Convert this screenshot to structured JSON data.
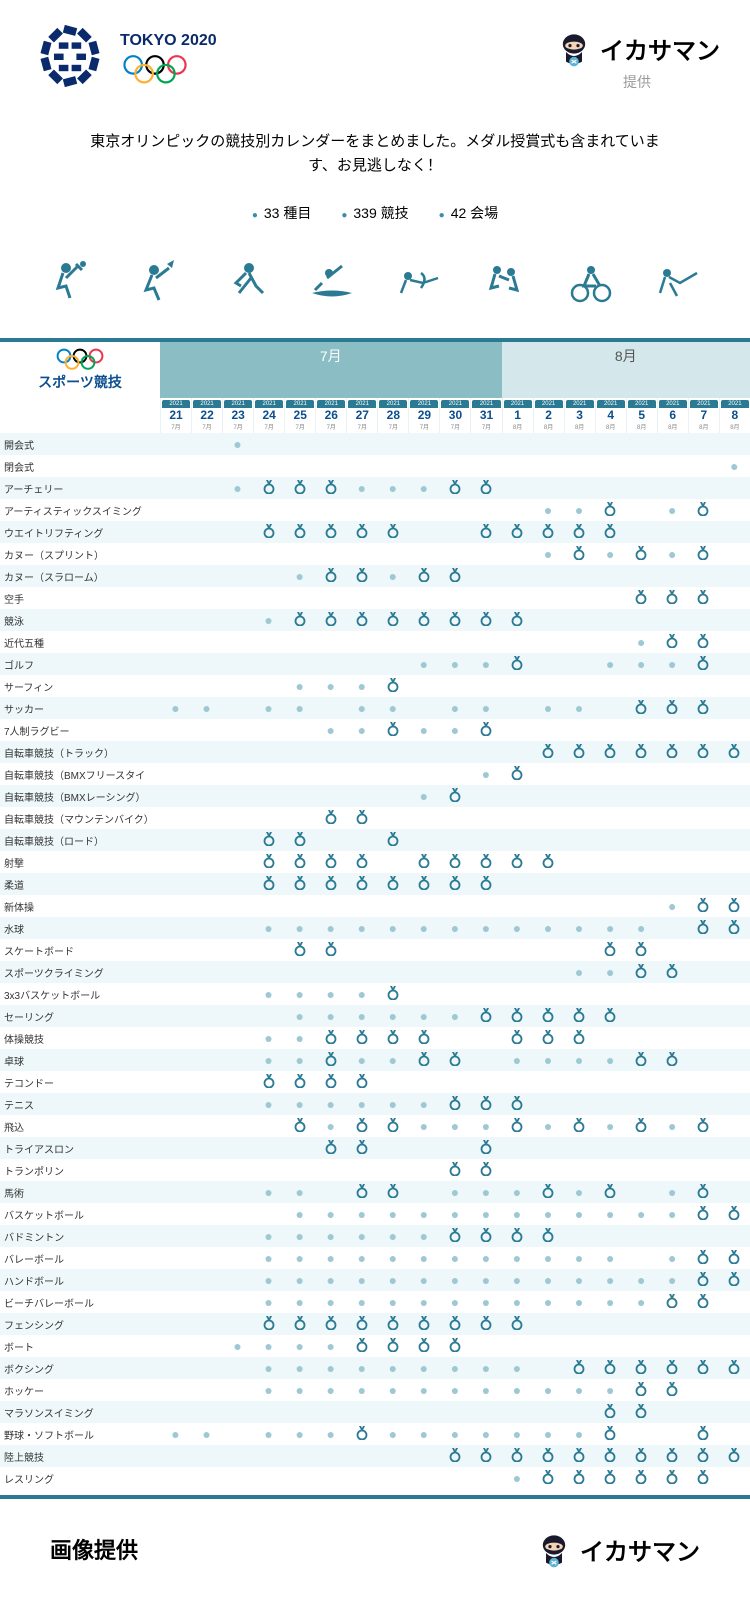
{
  "header": {
    "tokyo_text": "TOKYO 2020",
    "ikasaman": "イカサマン",
    "teikyo": "提供"
  },
  "intro": "東京オリンピックの競技別カレンダーをまとめました。メダル授賞式も含まれています、お見逃しなく！",
  "stats": [
    {
      "value": "33 種目"
    },
    {
      "value": "339 競技"
    },
    {
      "value": "42 会場"
    }
  ],
  "colors": {
    "brand": "#2b7a94",
    "navy": "#0b2a6b",
    "month_bg": "#8abdc4",
    "month_aug_bg": "#d4e8ec",
    "row_alt": "#eef7f9",
    "dot": "#9ec9d4"
  },
  "months": {
    "jul": "7月",
    "aug": "8月"
  },
  "sport_title": "スポーツ競技",
  "year": "2021",
  "dates": [
    {
      "d": "21",
      "m": "7月"
    },
    {
      "d": "22",
      "m": "7月"
    },
    {
      "d": "23",
      "m": "7月"
    },
    {
      "d": "24",
      "m": "7月"
    },
    {
      "d": "25",
      "m": "7月"
    },
    {
      "d": "26",
      "m": "7月"
    },
    {
      "d": "27",
      "m": "7月"
    },
    {
      "d": "28",
      "m": "7月"
    },
    {
      "d": "29",
      "m": "7月"
    },
    {
      "d": "30",
      "m": "7月"
    },
    {
      "d": "31",
      "m": "7月"
    },
    {
      "d": "1",
      "m": "8月"
    },
    {
      "d": "2",
      "m": "8月"
    },
    {
      "d": "3",
      "m": "8月"
    },
    {
      "d": "4",
      "m": "8月"
    },
    {
      "d": "5",
      "m": "8月"
    },
    {
      "d": "6",
      "m": "8月"
    },
    {
      "d": "7",
      "m": "8月"
    },
    {
      "d": "8",
      "m": "8月"
    }
  ],
  "legend": {
    "dot": "●",
    "medal": "ꝏ"
  },
  "sports": [
    {
      "name": "開会式",
      "cells": [
        "",
        "",
        "d",
        "",
        "",
        "",
        "",
        "",
        "",
        "",
        "",
        "",
        "",
        "",
        "",
        "",
        "",
        "",
        ""
      ]
    },
    {
      "name": "閉会式",
      "cells": [
        "",
        "",
        "",
        "",
        "",
        "",
        "",
        "",
        "",
        "",
        "",
        "",
        "",
        "",
        "",
        "",
        "",
        "",
        "d"
      ]
    },
    {
      "name": "アーチェリー",
      "cells": [
        "",
        "",
        "d",
        "m",
        "m",
        "m",
        "d",
        "d",
        "d",
        "m",
        "m",
        "",
        "",
        "",
        "",
        "",
        "",
        "",
        ""
      ]
    },
    {
      "name": "アーティスティックスイミング",
      "cells": [
        "",
        "",
        "",
        "",
        "",
        "",
        "",
        "",
        "",
        "",
        "",
        "",
        "d",
        "d",
        "m",
        "",
        "d",
        "m",
        ""
      ]
    },
    {
      "name": "ウエイトリフティング",
      "cells": [
        "",
        "",
        "",
        "m",
        "m",
        "m",
        "m",
        "m",
        "",
        "",
        "m",
        "m",
        "m",
        "m",
        "m",
        "",
        "",
        "",
        ""
      ]
    },
    {
      "name": "カヌー（スプリント）",
      "cells": [
        "",
        "",
        "",
        "",
        "",
        "",
        "",
        "",
        "",
        "",
        "",
        "",
        "d",
        "m",
        "d",
        "m",
        "d",
        "m",
        ""
      ]
    },
    {
      "name": "カヌー（スラローム）",
      "cells": [
        "",
        "",
        "",
        "",
        "d",
        "m",
        "m",
        "d",
        "m",
        "m",
        "",
        "",
        "",
        "",
        "",
        "",
        "",
        "",
        ""
      ]
    },
    {
      "name": "空手",
      "cells": [
        "",
        "",
        "",
        "",
        "",
        "",
        "",
        "",
        "",
        "",
        "",
        "",
        "",
        "",
        "",
        "m",
        "m",
        "m",
        ""
      ]
    },
    {
      "name": "競泳",
      "cells": [
        "",
        "",
        "",
        "d",
        "m",
        "m",
        "m",
        "m",
        "m",
        "m",
        "m",
        "m",
        "",
        "",
        "",
        "",
        "",
        "",
        ""
      ]
    },
    {
      "name": "近代五種",
      "cells": [
        "",
        "",
        "",
        "",
        "",
        "",
        "",
        "",
        "",
        "",
        "",
        "",
        "",
        "",
        "",
        "d",
        "m",
        "m",
        ""
      ]
    },
    {
      "name": "ゴルフ",
      "cells": [
        "",
        "",
        "",
        "",
        "",
        "",
        "",
        "",
        "d",
        "d",
        "d",
        "m",
        "",
        "",
        "d",
        "d",
        "d",
        "m",
        ""
      ]
    },
    {
      "name": "サーフィン",
      "cells": [
        "",
        "",
        "",
        "",
        "d",
        "d",
        "d",
        "m",
        "",
        "",
        "",
        "",
        "",
        "",
        "",
        "",
        "",
        "",
        ""
      ]
    },
    {
      "name": "サッカー",
      "cells": [
        "d",
        "d",
        "",
        "d",
        "d",
        "",
        "d",
        "d",
        "",
        "d",
        "d",
        "",
        "d",
        "d",
        "",
        "m",
        "m",
        "m",
        ""
      ]
    },
    {
      "name": "7人制ラグビー",
      "cells": [
        "",
        "",
        "",
        "",
        "",
        "d",
        "d",
        "m",
        "d",
        "d",
        "m",
        "",
        "",
        "",
        "",
        "",
        "",
        "",
        ""
      ]
    },
    {
      "name": "自転車競技（トラック）",
      "cells": [
        "",
        "",
        "",
        "",
        "",
        "",
        "",
        "",
        "",
        "",
        "",
        "",
        "m",
        "m",
        "m",
        "m",
        "m",
        "m",
        "m"
      ]
    },
    {
      "name": "自転車競技（BMXフリースタイ",
      "cells": [
        "",
        "",
        "",
        "",
        "",
        "",
        "",
        "",
        "",
        "",
        "d",
        "m",
        "",
        "",
        "",
        "",
        "",
        "",
        ""
      ]
    },
    {
      "name": "自転車競技（BMXレーシング）",
      "cells": [
        "",
        "",
        "",
        "",
        "",
        "",
        "",
        "",
        "d",
        "m",
        "",
        "",
        "",
        "",
        "",
        "",
        "",
        "",
        ""
      ]
    },
    {
      "name": "自転車競技（マウンテンバイク）",
      "cells": [
        "",
        "",
        "",
        "",
        "",
        "m",
        "m",
        "",
        "",
        "",
        "",
        "",
        "",
        "",
        "",
        "",
        "",
        "",
        ""
      ]
    },
    {
      "name": "自転車競技（ロード）",
      "cells": [
        "",
        "",
        "",
        "m",
        "m",
        "",
        "",
        "m",
        "",
        "",
        "",
        "",
        "",
        "",
        "",
        "",
        "",
        "",
        ""
      ]
    },
    {
      "name": "射撃",
      "cells": [
        "",
        "",
        "",
        "m",
        "m",
        "m",
        "m",
        "",
        "m",
        "m",
        "m",
        "m",
        "m",
        "",
        "",
        "",
        "",
        "",
        ""
      ]
    },
    {
      "name": "柔道",
      "cells": [
        "",
        "",
        "",
        "m",
        "m",
        "m",
        "m",
        "m",
        "m",
        "m",
        "m",
        "",
        "",
        "",
        "",
        "",
        "",
        "",
        ""
      ]
    },
    {
      "name": "新体操",
      "cells": [
        "",
        "",
        "",
        "",
        "",
        "",
        "",
        "",
        "",
        "",
        "",
        "",
        "",
        "",
        "",
        "",
        "d",
        "m",
        "m"
      ]
    },
    {
      "name": "水球",
      "cells": [
        "",
        "",
        "",
        "d",
        "d",
        "d",
        "d",
        "d",
        "d",
        "d",
        "d",
        "d",
        "d",
        "d",
        "d",
        "d",
        "",
        "m",
        "m"
      ]
    },
    {
      "name": "スケートボード",
      "cells": [
        "",
        "",
        "",
        "",
        "m",
        "m",
        "",
        "",
        "",
        "",
        "",
        "",
        "",
        "",
        "m",
        "m",
        "",
        "",
        ""
      ]
    },
    {
      "name": "スポーツクライミング",
      "cells": [
        "",
        "",
        "",
        "",
        "",
        "",
        "",
        "",
        "",
        "",
        "",
        "",
        "",
        "d",
        "d",
        "m",
        "m",
        "",
        ""
      ]
    },
    {
      "name": "3x3バスケットボール",
      "cells": [
        "",
        "",
        "",
        "d",
        "d",
        "d",
        "d",
        "m",
        "",
        "",
        "",
        "",
        "",
        "",
        "",
        "",
        "",
        "",
        ""
      ]
    },
    {
      "name": "セーリング",
      "cells": [
        "",
        "",
        "",
        "",
        "d",
        "d",
        "d",
        "d",
        "d",
        "d",
        "m",
        "m",
        "m",
        "m",
        "m",
        "",
        "",
        "",
        ""
      ]
    },
    {
      "name": "体操競技",
      "cells": [
        "",
        "",
        "",
        "d",
        "d",
        "m",
        "m",
        "m",
        "m",
        "",
        "",
        "m",
        "m",
        "m",
        "",
        "",
        "",
        "",
        ""
      ]
    },
    {
      "name": "卓球",
      "cells": [
        "",
        "",
        "",
        "d",
        "d",
        "m",
        "d",
        "d",
        "m",
        "m",
        "",
        "d",
        "d",
        "d",
        "d",
        "m",
        "m",
        "",
        ""
      ]
    },
    {
      "name": "テコンドー",
      "cells": [
        "",
        "",
        "",
        "m",
        "m",
        "m",
        "m",
        "",
        "",
        "",
        "",
        "",
        "",
        "",
        "",
        "",
        "",
        "",
        ""
      ]
    },
    {
      "name": "テニス",
      "cells": [
        "",
        "",
        "",
        "d",
        "d",
        "d",
        "d",
        "d",
        "d",
        "m",
        "m",
        "m",
        "",
        "",
        "",
        "",
        "",
        "",
        ""
      ]
    },
    {
      "name": "飛込",
      "cells": [
        "",
        "",
        "",
        "",
        "m",
        "d",
        "m",
        "m",
        "d",
        "d",
        "d",
        "m",
        "d",
        "m",
        "d",
        "m",
        "d",
        "m",
        ""
      ]
    },
    {
      "name": "トライアスロン",
      "cells": [
        "",
        "",
        "",
        "",
        "",
        "m",
        "m",
        "",
        "",
        "",
        "m",
        "",
        "",
        "",
        "",
        "",
        "",
        "",
        ""
      ]
    },
    {
      "name": "トランポリン",
      "cells": [
        "",
        "",
        "",
        "",
        "",
        "",
        "",
        "",
        "",
        "m",
        "m",
        "",
        "",
        "",
        "",
        "",
        "",
        "",
        ""
      ]
    },
    {
      "name": "馬術",
      "cells": [
        "",
        "",
        "",
        "d",
        "d",
        "",
        "m",
        "m",
        "",
        "d",
        "d",
        "d",
        "m",
        "d",
        "m",
        "",
        "d",
        "m",
        ""
      ]
    },
    {
      "name": "バスケットボール",
      "cells": [
        "",
        "",
        "",
        "",
        "d",
        "d",
        "d",
        "d",
        "d",
        "d",
        "d",
        "d",
        "d",
        "d",
        "d",
        "d",
        "d",
        "m",
        "m"
      ]
    },
    {
      "name": "バドミントン",
      "cells": [
        "",
        "",
        "",
        "d",
        "d",
        "d",
        "d",
        "d",
        "d",
        "m",
        "m",
        "m",
        "m",
        "",
        "",
        "",
        "",
        "",
        ""
      ]
    },
    {
      "name": "バレーボール",
      "cells": [
        "",
        "",
        "",
        "d",
        "d",
        "d",
        "d",
        "d",
        "d",
        "d",
        "d",
        "d",
        "d",
        "d",
        "d",
        "",
        "d",
        "m",
        "m"
      ]
    },
    {
      "name": "ハンドボール",
      "cells": [
        "",
        "",
        "",
        "d",
        "d",
        "d",
        "d",
        "d",
        "d",
        "d",
        "d",
        "d",
        "d",
        "d",
        "d",
        "d",
        "d",
        "m",
        "m"
      ]
    },
    {
      "name": "ビーチバレーボール",
      "cells": [
        "",
        "",
        "",
        "d",
        "d",
        "d",
        "d",
        "d",
        "d",
        "d",
        "d",
        "d",
        "d",
        "d",
        "d",
        "d",
        "m",
        "m",
        ""
      ]
    },
    {
      "name": "フェンシング",
      "cells": [
        "",
        "",
        "",
        "m",
        "m",
        "m",
        "m",
        "m",
        "m",
        "m",
        "m",
        "m",
        "",
        "",
        "",
        "",
        "",
        "",
        ""
      ]
    },
    {
      "name": "ボート",
      "cells": [
        "",
        "",
        "d",
        "d",
        "d",
        "d",
        "m",
        "m",
        "m",
        "m",
        "",
        "",
        "",
        "",
        "",
        "",
        "",
        "",
        ""
      ]
    },
    {
      "name": "ボクシング",
      "cells": [
        "",
        "",
        "",
        "d",
        "d",
        "d",
        "d",
        "d",
        "d",
        "d",
        "d",
        "d",
        "",
        "m",
        "m",
        "m",
        "m",
        "m",
        "m"
      ]
    },
    {
      "name": "ホッケー",
      "cells": [
        "",
        "",
        "",
        "d",
        "d",
        "d",
        "d",
        "d",
        "d",
        "d",
        "d",
        "d",
        "d",
        "d",
        "d",
        "m",
        "m",
        "",
        ""
      ]
    },
    {
      "name": "マラソンスイミング",
      "cells": [
        "",
        "",
        "",
        "",
        "",
        "",
        "",
        "",
        "",
        "",
        "",
        "",
        "",
        "",
        "m",
        "m",
        "",
        "",
        ""
      ]
    },
    {
      "name": "野球・ソフトボール",
      "cells": [
        "d",
        "d",
        "",
        "d",
        "d",
        "d",
        "m",
        "d",
        "d",
        "d",
        "d",
        "d",
        "d",
        "d",
        "m",
        "",
        "",
        "m",
        ""
      ]
    },
    {
      "name": "陸上競技",
      "cells": [
        "",
        "",
        "",
        "",
        "",
        "",
        "",
        "",
        "",
        "m",
        "m",
        "m",
        "m",
        "m",
        "m",
        "m",
        "m",
        "m",
        "m"
      ]
    },
    {
      "name": "レスリング",
      "cells": [
        "",
        "",
        "",
        "",
        "",
        "",
        "",
        "",
        "",
        "",
        "",
        "d",
        "m",
        "m",
        "m",
        "m",
        "m",
        "m",
        ""
      ]
    }
  ],
  "footer": {
    "text": "画像提供",
    "ikasaman": "イカサマン"
  }
}
